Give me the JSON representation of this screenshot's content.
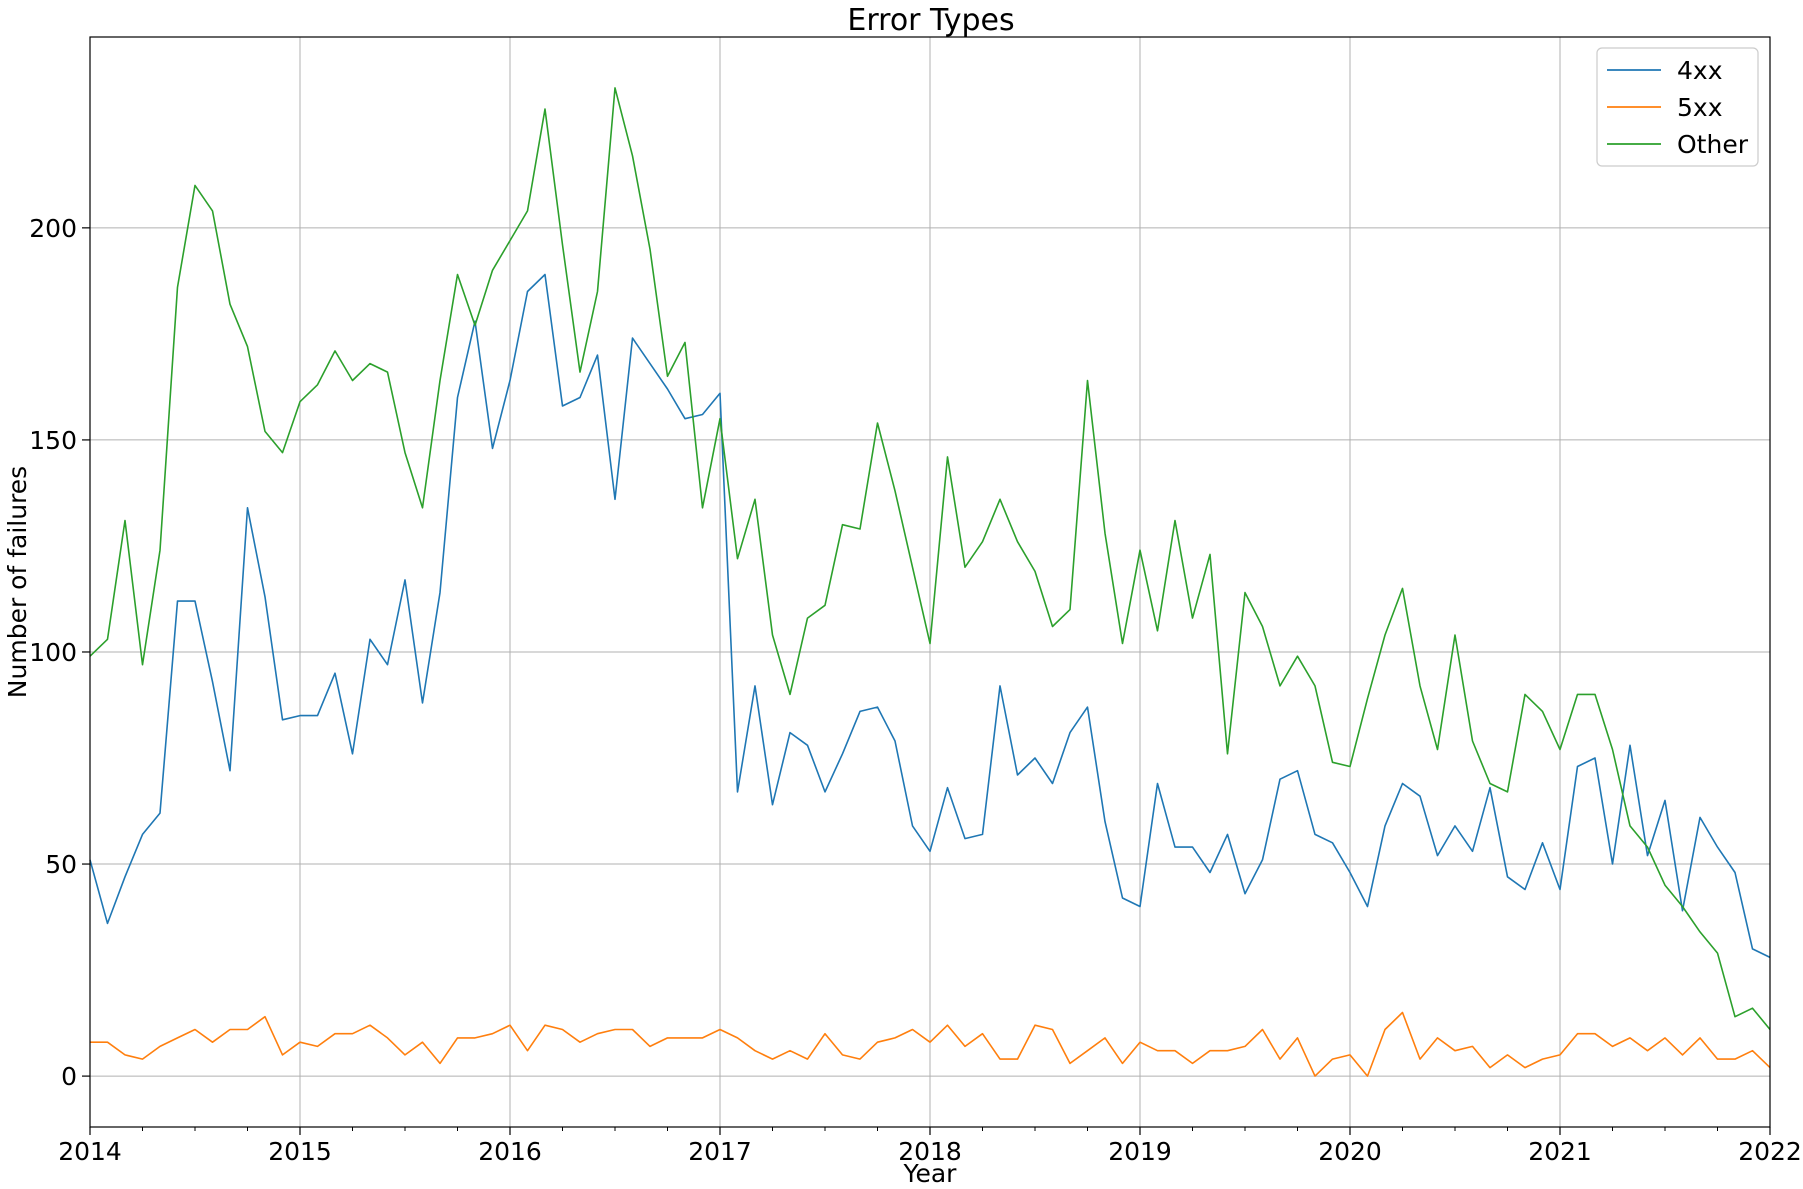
{
  "chart_data": {
    "type": "line",
    "title": "Error Types",
    "xlabel": "Year",
    "ylabel": "Number of failures",
    "x_start": "2014-01",
    "x_step": "1 month",
    "xlim": [
      "2014-01",
      "2022-01"
    ],
    "ylim": [
      -12,
      245
    ],
    "x_ticks": [
      "2014",
      "2015",
      "2016",
      "2017",
      "2018",
      "2019",
      "2020",
      "2021",
      "2022"
    ],
    "y_ticks": [
      0,
      50,
      100,
      150,
      200
    ],
    "grid": true,
    "legend_position": "top-right",
    "series": [
      {
        "name": "4xx",
        "color": "#1f77b4",
        "values": [
          51,
          36,
          47,
          57,
          62,
          112,
          112,
          93,
          72,
          134,
          113,
          84,
          85,
          85,
          95,
          76,
          103,
          97,
          117,
          88,
          114,
          160,
          178,
          148,
          164,
          185,
          189,
          158,
          160,
          170,
          136,
          174,
          168,
          162,
          155,
          156,
          161,
          67,
          92,
          64,
          81,
          78,
          67,
          76,
          86,
          87,
          79,
          59,
          53,
          68,
          56,
          57,
          92,
          71,
          75,
          69,
          81,
          87,
          60,
          42,
          40,
          69,
          54,
          54,
          48,
          57,
          43,
          51,
          70,
          72,
          57,
          55,
          48,
          40,
          59,
          69,
          66,
          52,
          59,
          53,
          68,
          47,
          44,
          55,
          44,
          73,
          75,
          50,
          78,
          52,
          65,
          39,
          61,
          54,
          48,
          30,
          28
        ]
      },
      {
        "name": "5xx",
        "color": "#ff7f0e",
        "values": [
          8,
          8,
          5,
          4,
          7,
          9,
          11,
          8,
          11,
          11,
          14,
          5,
          8,
          7,
          10,
          10,
          12,
          9,
          5,
          8,
          3,
          9,
          9,
          10,
          12,
          6,
          12,
          11,
          8,
          10,
          11,
          11,
          7,
          9,
          9,
          9,
          11,
          9,
          6,
          4,
          6,
          4,
          10,
          5,
          4,
          8,
          9,
          11,
          8,
          12,
          7,
          10,
          4,
          4,
          12,
          11,
          3,
          6,
          9,
          3,
          8,
          6,
          6,
          3,
          6,
          6,
          7,
          11,
          4,
          9,
          0,
          4,
          5,
          0,
          11,
          15,
          4,
          9,
          6,
          7,
          2,
          5,
          2,
          4,
          5,
          10,
          10,
          7,
          9,
          6,
          9,
          5,
          9,
          4,
          4,
          6,
          2
        ]
      },
      {
        "name": "Other",
        "color": "#2ca02c",
        "values": [
          99,
          103,
          131,
          97,
          124,
          186,
          210,
          204,
          182,
          172,
          152,
          147,
          159,
          163,
          171,
          164,
          168,
          166,
          147,
          134,
          164,
          189,
          177,
          190,
          197,
          204,
          228,
          196,
          166,
          185,
          233,
          217,
          195,
          165,
          173,
          134,
          155,
          122,
          136,
          104,
          90,
          108,
          111,
          130,
          129,
          154,
          138,
          120,
          102,
          146,
          120,
          126,
          136,
          126,
          119,
          106,
          110,
          164,
          128,
          102,
          124,
          105,
          131,
          108,
          123,
          76,
          114,
          106,
          92,
          99,
          92,
          74,
          73,
          89,
          104,
          115,
          92,
          77,
          104,
          79,
          69,
          67,
          90,
          86,
          77,
          90,
          90,
          77,
          59,
          54,
          45,
          40,
          34,
          29,
          14,
          16,
          11
        ]
      }
    ]
  }
}
